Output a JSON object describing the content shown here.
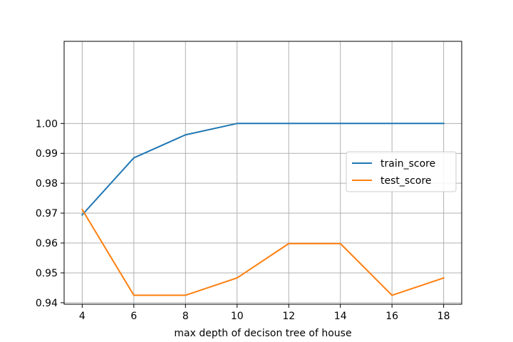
{
  "chart_data": {
    "type": "line",
    "title": "",
    "xlabel": "max depth of decison tree of house",
    "ylabel": "",
    "x": [
      4,
      6,
      8,
      10,
      12,
      14,
      16,
      18
    ],
    "xlim": [
      3.3,
      18.7
    ],
    "ylim": [
      0.9395,
      1.0275
    ],
    "xticks": [
      4,
      6,
      8,
      10,
      12,
      14,
      16,
      18
    ],
    "yticks": [
      0.94,
      0.95,
      0.96,
      0.97,
      0.98,
      0.99,
      1.0
    ],
    "ytick_labels": [
      "0.94",
      "0.95",
      "0.96",
      "0.97",
      "0.98",
      "0.99",
      "1.00"
    ],
    "grid": true,
    "legend_position": "center-right",
    "series": [
      {
        "name": "train_score",
        "color": "#1f77b4",
        "values": [
          0.9694,
          0.9885,
          0.9962,
          1.0,
          1.0,
          1.0,
          1.0,
          1.0
        ]
      },
      {
        "name": "test_score",
        "color": "#ff7f0e",
        "values": [
          0.9712,
          0.9425,
          0.9425,
          0.9483,
          0.9598,
          0.9598,
          0.9425,
          0.9483
        ]
      }
    ]
  }
}
